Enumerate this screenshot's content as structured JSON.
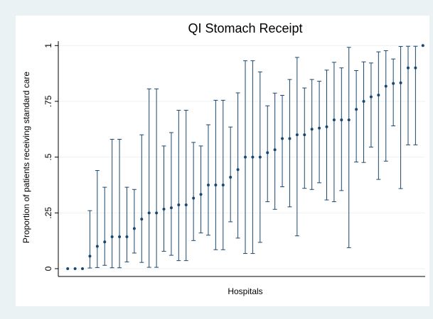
{
  "chart_data": {
    "type": "errorbar",
    "title": "QI Stomach Receipt",
    "y_label": "Proportion of patients receiving standard care",
    "x_label": "Hospitals",
    "categories": [
      null,
      null,
      null,
      null,
      null,
      null,
      null,
      null,
      null,
      null,
      null,
      null,
      null,
      null,
      null,
      null,
      null,
      null,
      null,
      null,
      null,
      null,
      null,
      null,
      null,
      null,
      null,
      null,
      null,
      null,
      null,
      null,
      null,
      null,
      null,
      null,
      null,
      null,
      null,
      null,
      null,
      null,
      null,
      null,
      null,
      null,
      null,
      null,
      null
    ],
    "series": [
      {
        "color": "#1a476f",
        "values": [
          0,
          0,
          0,
          0.056,
          0.1,
          0.12,
          0.143,
          0.143,
          0.143,
          0.18,
          0.222,
          0.25,
          0.25,
          0.267,
          0.273,
          0.286,
          0.286,
          0.316,
          0.333,
          0.375,
          0.375,
          0.375,
          0.41,
          0.444,
          0.5,
          0.5,
          0.5,
          0.52,
          0.533,
          0.583,
          0.583,
          0.6,
          0.6,
          0.625,
          0.63,
          0.636,
          0.667,
          0.667,
          0.667,
          0.714,
          0.75,
          0.77,
          0.778,
          0.818,
          0.83,
          0.833,
          0.9,
          0.9,
          1
        ],
        "lower": [
          null,
          null,
          null,
          0.003,
          0.005,
          0.015,
          0.004,
          0.004,
          0.03,
          0.07,
          0.028,
          0.006,
          0.006,
          0.078,
          0.06,
          0.036,
          0.036,
          0.126,
          0.16,
          0.15,
          0.085,
          0.085,
          0.21,
          0.137,
          0.068,
          0.068,
          0.118,
          0.3,
          0.266,
          0.367,
          0.277,
          0.147,
          0.36,
          0.355,
          0.385,
          0.308,
          0.3,
          0.35,
          0.094,
          0.478,
          0.476,
          0.545,
          0.4,
          0.482,
          0.64,
          0.359,
          0.555,
          0.555,
          null
        ],
        "upper": [
          null,
          null,
          null,
          0.26,
          0.44,
          0.365,
          0.58,
          0.58,
          0.365,
          0.355,
          0.6,
          0.806,
          0.806,
          0.55,
          0.61,
          0.71,
          0.71,
          0.566,
          0.55,
          0.645,
          0.755,
          0.755,
          0.635,
          0.788,
          0.932,
          0.932,
          0.882,
          0.73,
          0.787,
          0.777,
          0.848,
          0.947,
          0.81,
          0.848,
          0.84,
          0.89,
          0.925,
          0.9,
          0.992,
          0.888,
          0.927,
          0.922,
          0.972,
          0.977,
          0.94,
          0.996,
          0.997,
          0.997,
          null
        ]
      }
    ],
    "ylim": [
      -0.035,
      1.02
    ],
    "yticks": [
      {
        "value": 0,
        "label": "0"
      },
      {
        "value": 0.25,
        "label": ".25"
      },
      {
        "value": 0.5,
        "label": ".5"
      },
      {
        "value": 0.75,
        "label": ".75"
      },
      {
        "value": 1,
        "label": "1"
      }
    ],
    "grid": true
  }
}
